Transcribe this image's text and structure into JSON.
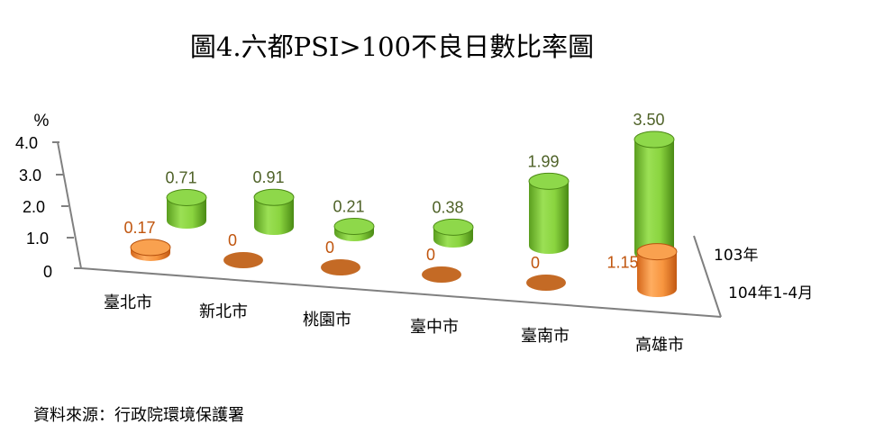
{
  "chart_data": {
    "type": "bar",
    "title": "圖4.六都PSI>100不良日數比率圖",
    "ylabel": "%",
    "ylim": [
      0,
      4
    ],
    "yticks": [
      "4.0",
      "3.0",
      "2.0",
      "1.0",
      "0"
    ],
    "categories": [
      "臺北市",
      "新北市",
      "桃園市",
      "臺中市",
      "臺南市",
      "高雄市"
    ],
    "series": [
      {
        "name": "103年",
        "values": [
          0.71,
          0.91,
          0.21,
          0.38,
          1.99,
          3.5
        ],
        "labels": [
          "0.71",
          "0.91",
          "0.21",
          "0.38",
          "1.99",
          "3.50"
        ]
      },
      {
        "name": "104年1-4月",
        "values": [
          0.17,
          0,
          0,
          0,
          0,
          1.15
        ],
        "labels": [
          "0.17",
          "0",
          "0",
          "0",
          "0",
          "1.15"
        ]
      }
    ],
    "grid": false,
    "legend": "right"
  },
  "source_note": "資料來源：行政院環境保護署",
  "colors": {
    "series_103": "#7cc63a",
    "series_103_label": "#4f6228",
    "series_104": "#f08a3c",
    "series_104_label": "#c0550e",
    "axis": "#808080"
  }
}
